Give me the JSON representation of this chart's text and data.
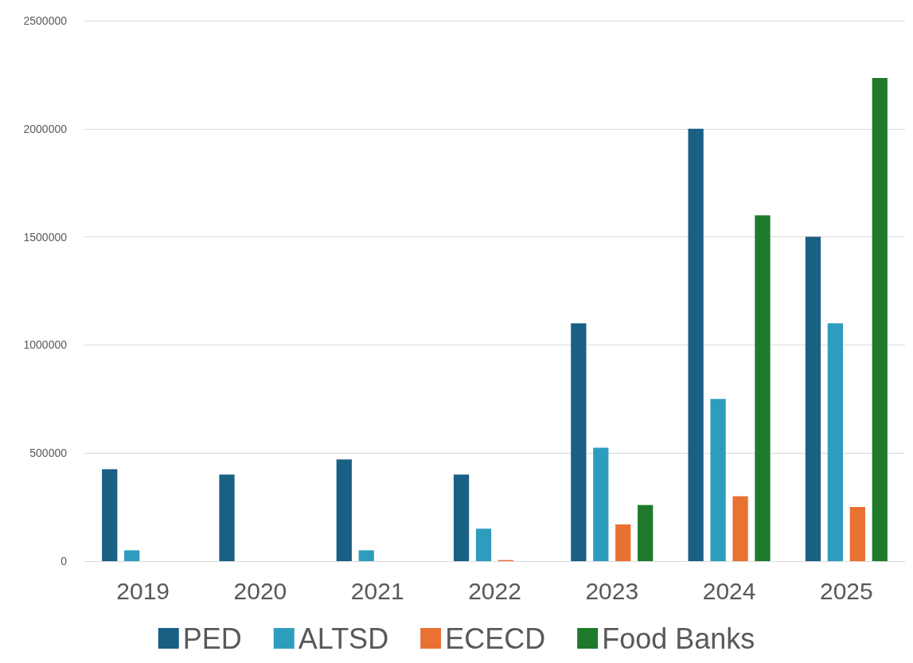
{
  "chart_data": {
    "type": "bar",
    "categories": [
      "2019",
      "2020",
      "2021",
      "2022",
      "2023",
      "2024",
      "2025"
    ],
    "series": [
      {
        "name": "PED",
        "color": "#1a5f84",
        "values": [
          425000,
          400000,
          470000,
          400000,
          1100000,
          2000000,
          1500000
        ]
      },
      {
        "name": "ALTSD",
        "color": "#2e9dbd",
        "values": [
          50000,
          null,
          50000,
          150000,
          525000,
          750000,
          1100000
        ]
      },
      {
        "name": "ECECD",
        "color": "#e97132",
        "values": [
          null,
          null,
          null,
          5000,
          170000,
          300000,
          250000
        ]
      },
      {
        "name": "Food Banks",
        "color": "#1e7a2a",
        "values": [
          null,
          null,
          null,
          null,
          260000,
          1600000,
          2235000
        ]
      }
    ],
    "ylim": [
      0,
      2500000
    ],
    "yticks": [
      0,
      500000,
      1000000,
      1500000,
      2000000,
      2500000
    ],
    "grid": "y",
    "legend": "bottom"
  }
}
